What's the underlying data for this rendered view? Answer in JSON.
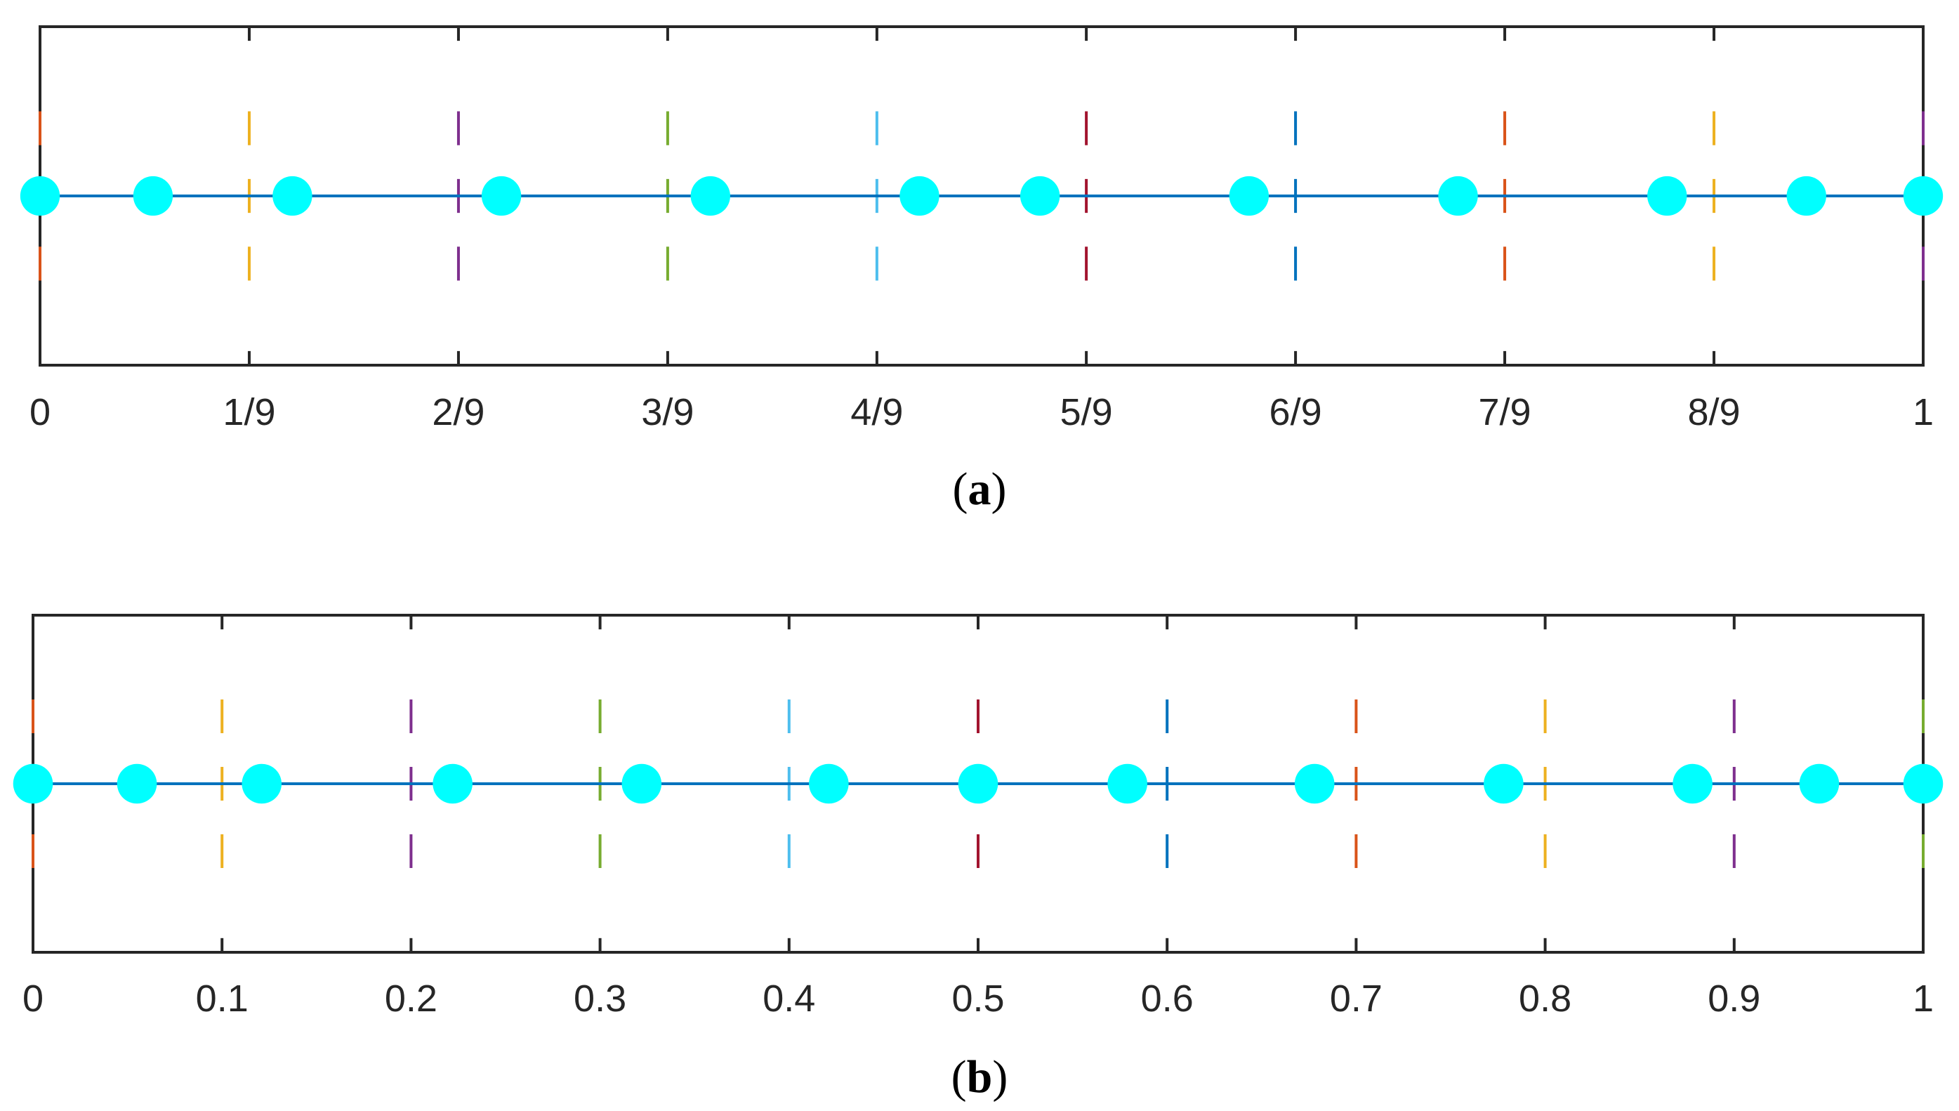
{
  "chart_data": [
    {
      "type": "scatter",
      "caption": "a",
      "xlim": [
        0,
        1
      ],
      "ylim": [
        -1,
        1
      ],
      "ticks": [
        {
          "value": 0,
          "label": "0"
        },
        {
          "value": 0.1111,
          "label": "1/9"
        },
        {
          "value": 0.2222,
          "label": "2/9"
        },
        {
          "value": 0.3333,
          "label": "3/9"
        },
        {
          "value": 0.4444,
          "label": "4/9"
        },
        {
          "value": 0.5556,
          "label": "5/9"
        },
        {
          "value": 0.6667,
          "label": "6/9"
        },
        {
          "value": 0.7778,
          "label": "7/9"
        },
        {
          "value": 0.8889,
          "label": "8/9"
        },
        {
          "value": 1,
          "label": "1"
        }
      ],
      "line": {
        "y": 0,
        "from": 0,
        "to": 1,
        "color": "#0072BD"
      },
      "dividers": [
        {
          "x": 0,
          "color": "#D95319"
        },
        {
          "x": 0.1111,
          "color": "#EDB120"
        },
        {
          "x": 0.2222,
          "color": "#7E2F8E"
        },
        {
          "x": 0.3333,
          "color": "#77AC30"
        },
        {
          "x": 0.4444,
          "color": "#4DBEEE"
        },
        {
          "x": 0.5556,
          "color": "#A2142F"
        },
        {
          "x": 0.6667,
          "color": "#0072BD"
        },
        {
          "x": 0.7778,
          "color": "#D95319"
        },
        {
          "x": 0.8889,
          "color": "#EDB120"
        },
        {
          "x": 1,
          "color": "#7E2F8E"
        }
      ],
      "points": {
        "color": "#00FFFF",
        "x": [
          0,
          0.06,
          0.134,
          0.245,
          0.356,
          0.467,
          0.531,
          0.642,
          0.753,
          0.864,
          0.938,
          1.0
        ]
      }
    },
    {
      "type": "scatter",
      "caption": "b",
      "xlim": [
        0,
        1
      ],
      "ylim": [
        -1,
        1
      ],
      "ticks": [
        {
          "value": 0,
          "label": "0"
        },
        {
          "value": 0.1,
          "label": "0.1"
        },
        {
          "value": 0.2,
          "label": "0.2"
        },
        {
          "value": 0.3,
          "label": "0.3"
        },
        {
          "value": 0.4,
          "label": "0.4"
        },
        {
          "value": 0.5,
          "label": "0.5"
        },
        {
          "value": 0.6,
          "label": "0.6"
        },
        {
          "value": 0.7,
          "label": "0.7"
        },
        {
          "value": 0.8,
          "label": "0.8"
        },
        {
          "value": 0.9,
          "label": "0.9"
        },
        {
          "value": 1,
          "label": "1"
        }
      ],
      "line": {
        "y": 0,
        "from": 0,
        "to": 1,
        "color": "#0072BD"
      },
      "dividers": [
        {
          "x": 0,
          "color": "#D95319"
        },
        {
          "x": 0.1,
          "color": "#EDB120"
        },
        {
          "x": 0.2,
          "color": "#7E2F8E"
        },
        {
          "x": 0.3,
          "color": "#77AC30"
        },
        {
          "x": 0.4,
          "color": "#4DBEEE"
        },
        {
          "x": 0.5,
          "color": "#A2142F"
        },
        {
          "x": 0.6,
          "color": "#0072BD"
        },
        {
          "x": 0.7,
          "color": "#D95319"
        },
        {
          "x": 0.8,
          "color": "#EDB120"
        },
        {
          "x": 0.9,
          "color": "#7E2F8E"
        },
        {
          "x": 1,
          "color": "#77AC30"
        }
      ],
      "points": {
        "color": "#00FFFF",
        "x": [
          0,
          0.055,
          0.121,
          0.222,
          0.322,
          0.421,
          0.5,
          0.579,
          0.678,
          0.778,
          0.878,
          0.945,
          1.0
        ]
      }
    }
  ]
}
